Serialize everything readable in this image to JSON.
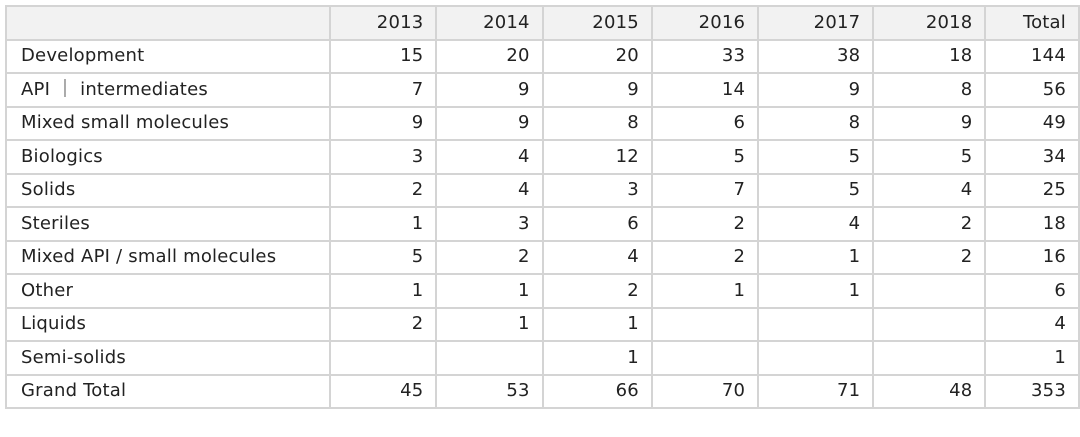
{
  "chart_data": {
    "type": "table",
    "corner": "",
    "columns": [
      "2013",
      "2014",
      "2015",
      "2016",
      "2017",
      "2018",
      "Total"
    ],
    "rows": [
      {
        "label": "Development",
        "values": [
          "15",
          "20",
          "20",
          "33",
          "38",
          "18",
          "144"
        ]
      },
      {
        "label": "API ｜ intermediates",
        "values": [
          "7",
          "9",
          "9",
          "14",
          "9",
          "8",
          "56"
        ]
      },
      {
        "label": "Mixed small molecules",
        "values": [
          "9",
          "9",
          "8",
          "6",
          "8",
          "9",
          "49"
        ]
      },
      {
        "label": "Biologics",
        "values": [
          "3",
          "4",
          "12",
          "5",
          "5",
          "5",
          "34"
        ]
      },
      {
        "label": "Solids",
        "values": [
          "2",
          "4",
          "3",
          "7",
          "5",
          "4",
          "25"
        ]
      },
      {
        "label": "Steriles",
        "values": [
          "1",
          "3",
          "6",
          "2",
          "4",
          "2",
          "18"
        ]
      },
      {
        "label": "Mixed API / small molecules",
        "values": [
          "5",
          "2",
          "4",
          "2",
          "1",
          "2",
          "16"
        ]
      },
      {
        "label": "Other",
        "values": [
          "1",
          "1",
          "2",
          "1",
          "1",
          "",
          "6"
        ]
      },
      {
        "label": "Liquids",
        "values": [
          "2",
          "1",
          "1",
          "",
          "",
          "",
          "4"
        ]
      },
      {
        "label": "Semi-solids",
        "values": [
          "",
          "",
          "1",
          "",
          "",
          "",
          "1"
        ]
      },
      {
        "label": "Grand Total",
        "values": [
          "45",
          "53",
          "66",
          "70",
          "71",
          "48",
          "353"
        ]
      }
    ]
  },
  "colors": {
    "header_bg": "#f2f2f2",
    "border": "#d4d4d4",
    "text": "#222222"
  }
}
